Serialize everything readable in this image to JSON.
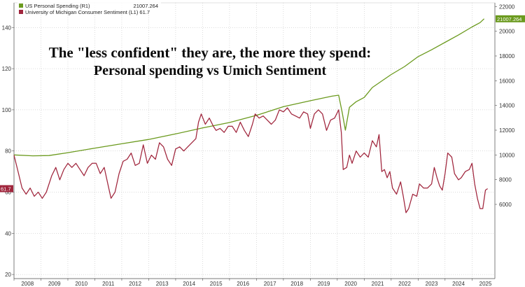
{
  "chart_data": {
    "type": "line",
    "title": "The \"less confident\" they are, the more they spend:",
    "subtitle": "Personal spending vs Umich Sentiment",
    "legend": {
      "placement": "top-left",
      "entries": [
        {
          "name": "US Personal Spending (R1)",
          "value_text": "21007.264",
          "color": "#6b9a1e"
        },
        {
          "name": "University of Michigan Consumer Sentiment (L1)",
          "value_text": "61.7",
          "color": "#a0253c"
        }
      ]
    },
    "x_axis": {
      "ticks": [
        "2008",
        "2009",
        "2010",
        "2011",
        "2012",
        "2013",
        "2014",
        "2015",
        "2016",
        "2017",
        "2018",
        "2019",
        "2020",
        "2021",
        "2022",
        "2023",
        "2024",
        "2025"
      ],
      "range": [
        2008.0,
        2025.85
      ]
    },
    "y_left": {
      "range": [
        18,
        152
      ],
      "ticks": [
        "20",
        "40",
        "60",
        "80",
        "100",
        "120",
        "140"
      ]
    },
    "y_right": {
      "range": [
        0,
        22300
      ],
      "ticks": [
        "6000",
        "8000",
        "10000",
        "12000",
        "14000",
        "16000",
        "18000",
        "20000",
        "22000"
      ]
    },
    "series": [
      {
        "name": "US Personal Spending",
        "axis": "right",
        "color": "#6b9a1e",
        "last_value_label": "21007.264",
        "points": [
          [
            2008.0,
            10000
          ],
          [
            2008.7,
            9930
          ],
          [
            2009.3,
            9950
          ],
          [
            2010.0,
            10180
          ],
          [
            2011.0,
            10550
          ],
          [
            2012.0,
            10900
          ],
          [
            2013.0,
            11250
          ],
          [
            2014.0,
            11700
          ],
          [
            2015.0,
            12180
          ],
          [
            2016.0,
            12620
          ],
          [
            2017.0,
            13200
          ],
          [
            2018.0,
            13900
          ],
          [
            2019.0,
            14380
          ],
          [
            2019.8,
            14750
          ],
          [
            2020.05,
            14830
          ],
          [
            2020.18,
            13450
          ],
          [
            2020.3,
            12000
          ],
          [
            2020.45,
            13850
          ],
          [
            2020.7,
            14300
          ],
          [
            2021.0,
            14650
          ],
          [
            2021.3,
            15450
          ],
          [
            2021.7,
            16050
          ],
          [
            2022.0,
            16500
          ],
          [
            2022.5,
            17150
          ],
          [
            2023.0,
            17950
          ],
          [
            2023.5,
            18500
          ],
          [
            2024.0,
            19100
          ],
          [
            2024.5,
            19700
          ],
          [
            2025.0,
            20350
          ],
          [
            2025.3,
            20700
          ],
          [
            2025.45,
            21007.264
          ]
        ]
      },
      {
        "name": "University of Michigan Consumer Sentiment",
        "axis": "left",
        "color": "#a0253c",
        "last_value_label": "61.7",
        "points": [
          [
            2008.0,
            78
          ],
          [
            2008.15,
            70
          ],
          [
            2008.3,
            62
          ],
          [
            2008.45,
            59
          ],
          [
            2008.6,
            62
          ],
          [
            2008.75,
            58
          ],
          [
            2008.9,
            60
          ],
          [
            2009.05,
            57
          ],
          [
            2009.2,
            60
          ],
          [
            2009.4,
            68
          ],
          [
            2009.55,
            72
          ],
          [
            2009.7,
            66
          ],
          [
            2009.85,
            71
          ],
          [
            2010.0,
            74
          ],
          [
            2010.15,
            72
          ],
          [
            2010.3,
            74
          ],
          [
            2010.45,
            71
          ],
          [
            2010.6,
            68
          ],
          [
            2010.75,
            72
          ],
          [
            2010.9,
            74
          ],
          [
            2011.05,
            74
          ],
          [
            2011.2,
            69
          ],
          [
            2011.35,
            72
          ],
          [
            2011.5,
            63
          ],
          [
            2011.6,
            57
          ],
          [
            2011.75,
            60
          ],
          [
            2011.9,
            69
          ],
          [
            2012.05,
            75
          ],
          [
            2012.2,
            76
          ],
          [
            2012.35,
            79
          ],
          [
            2012.5,
            73
          ],
          [
            2012.65,
            74
          ],
          [
            2012.8,
            83
          ],
          [
            2012.95,
            74
          ],
          [
            2013.1,
            78
          ],
          [
            2013.25,
            76
          ],
          [
            2013.4,
            84
          ],
          [
            2013.55,
            82
          ],
          [
            2013.7,
            76
          ],
          [
            2013.85,
            73
          ],
          [
            2014.0,
            81
          ],
          [
            2014.15,
            82
          ],
          [
            2014.3,
            80
          ],
          [
            2014.45,
            82
          ],
          [
            2014.6,
            84
          ],
          [
            2014.75,
            86
          ],
          [
            2014.85,
            94
          ],
          [
            2014.95,
            98
          ],
          [
            2015.1,
            93
          ],
          [
            2015.25,
            96
          ],
          [
            2015.4,
            92
          ],
          [
            2015.5,
            90
          ],
          [
            2015.65,
            91
          ],
          [
            2015.8,
            89
          ],
          [
            2015.95,
            92
          ],
          [
            2016.1,
            92
          ],
          [
            2016.25,
            89
          ],
          [
            2016.4,
            94
          ],
          [
            2016.55,
            90
          ],
          [
            2016.7,
            87
          ],
          [
            2016.85,
            93
          ],
          [
            2016.95,
            98
          ],
          [
            2017.1,
            96
          ],
          [
            2017.25,
            97
          ],
          [
            2017.4,
            95
          ],
          [
            2017.55,
            93
          ],
          [
            2017.7,
            95
          ],
          [
            2017.85,
            100
          ],
          [
            2018.0,
            99
          ],
          [
            2018.15,
            101
          ],
          [
            2018.3,
            98
          ],
          [
            2018.45,
            97
          ],
          [
            2018.6,
            96
          ],
          [
            2018.75,
            99
          ],
          [
            2018.9,
            98
          ],
          [
            2019.0,
            91
          ],
          [
            2019.15,
            98
          ],
          [
            2019.3,
            100
          ],
          [
            2019.45,
            98
          ],
          [
            2019.6,
            90
          ],
          [
            2019.75,
            95
          ],
          [
            2019.9,
            96
          ],
          [
            2020.05,
            100
          ],
          [
            2020.15,
            89
          ],
          [
            2020.22,
            71
          ],
          [
            2020.35,
            72
          ],
          [
            2020.45,
            78
          ],
          [
            2020.55,
            74
          ],
          [
            2020.7,
            80
          ],
          [
            2020.85,
            77
          ],
          [
            2021.0,
            79
          ],
          [
            2021.15,
            77
          ],
          [
            2021.3,
            85
          ],
          [
            2021.45,
            82
          ],
          [
            2021.55,
            88
          ],
          [
            2021.65,
            70
          ],
          [
            2021.75,
            71
          ],
          [
            2021.85,
            67
          ],
          [
            2021.95,
            70
          ],
          [
            2022.05,
            62
          ],
          [
            2022.2,
            59
          ],
          [
            2022.35,
            65
          ],
          [
            2022.45,
            58
          ],
          [
            2022.55,
            50
          ],
          [
            2022.65,
            52
          ],
          [
            2022.8,
            59
          ],
          [
            2022.95,
            58
          ],
          [
            2023.05,
            64
          ],
          [
            2023.2,
            62
          ],
          [
            2023.35,
            62
          ],
          [
            2023.5,
            64
          ],
          [
            2023.6,
            72
          ],
          [
            2023.7,
            67
          ],
          [
            2023.8,
            63
          ],
          [
            2023.9,
            61
          ],
          [
            2024.0,
            69
          ],
          [
            2024.1,
            79
          ],
          [
            2024.25,
            77
          ],
          [
            2024.35,
            69
          ],
          [
            2024.5,
            66
          ],
          [
            2024.6,
            67
          ],
          [
            2024.75,
            70
          ],
          [
            2024.9,
            71
          ],
          [
            2025.0,
            74
          ],
          [
            2025.1,
            64
          ],
          [
            2025.2,
            57
          ],
          [
            2025.3,
            52
          ],
          [
            2025.4,
            52
          ],
          [
            2025.5,
            61
          ],
          [
            2025.58,
            61.7
          ]
        ]
      }
    ],
    "grid": true,
    "colors": {
      "background": "#ffffff",
      "grid": "#b9b9b9",
      "axis": "#555555",
      "text": "#333333",
      "title": "#0a0a0a"
    }
  }
}
